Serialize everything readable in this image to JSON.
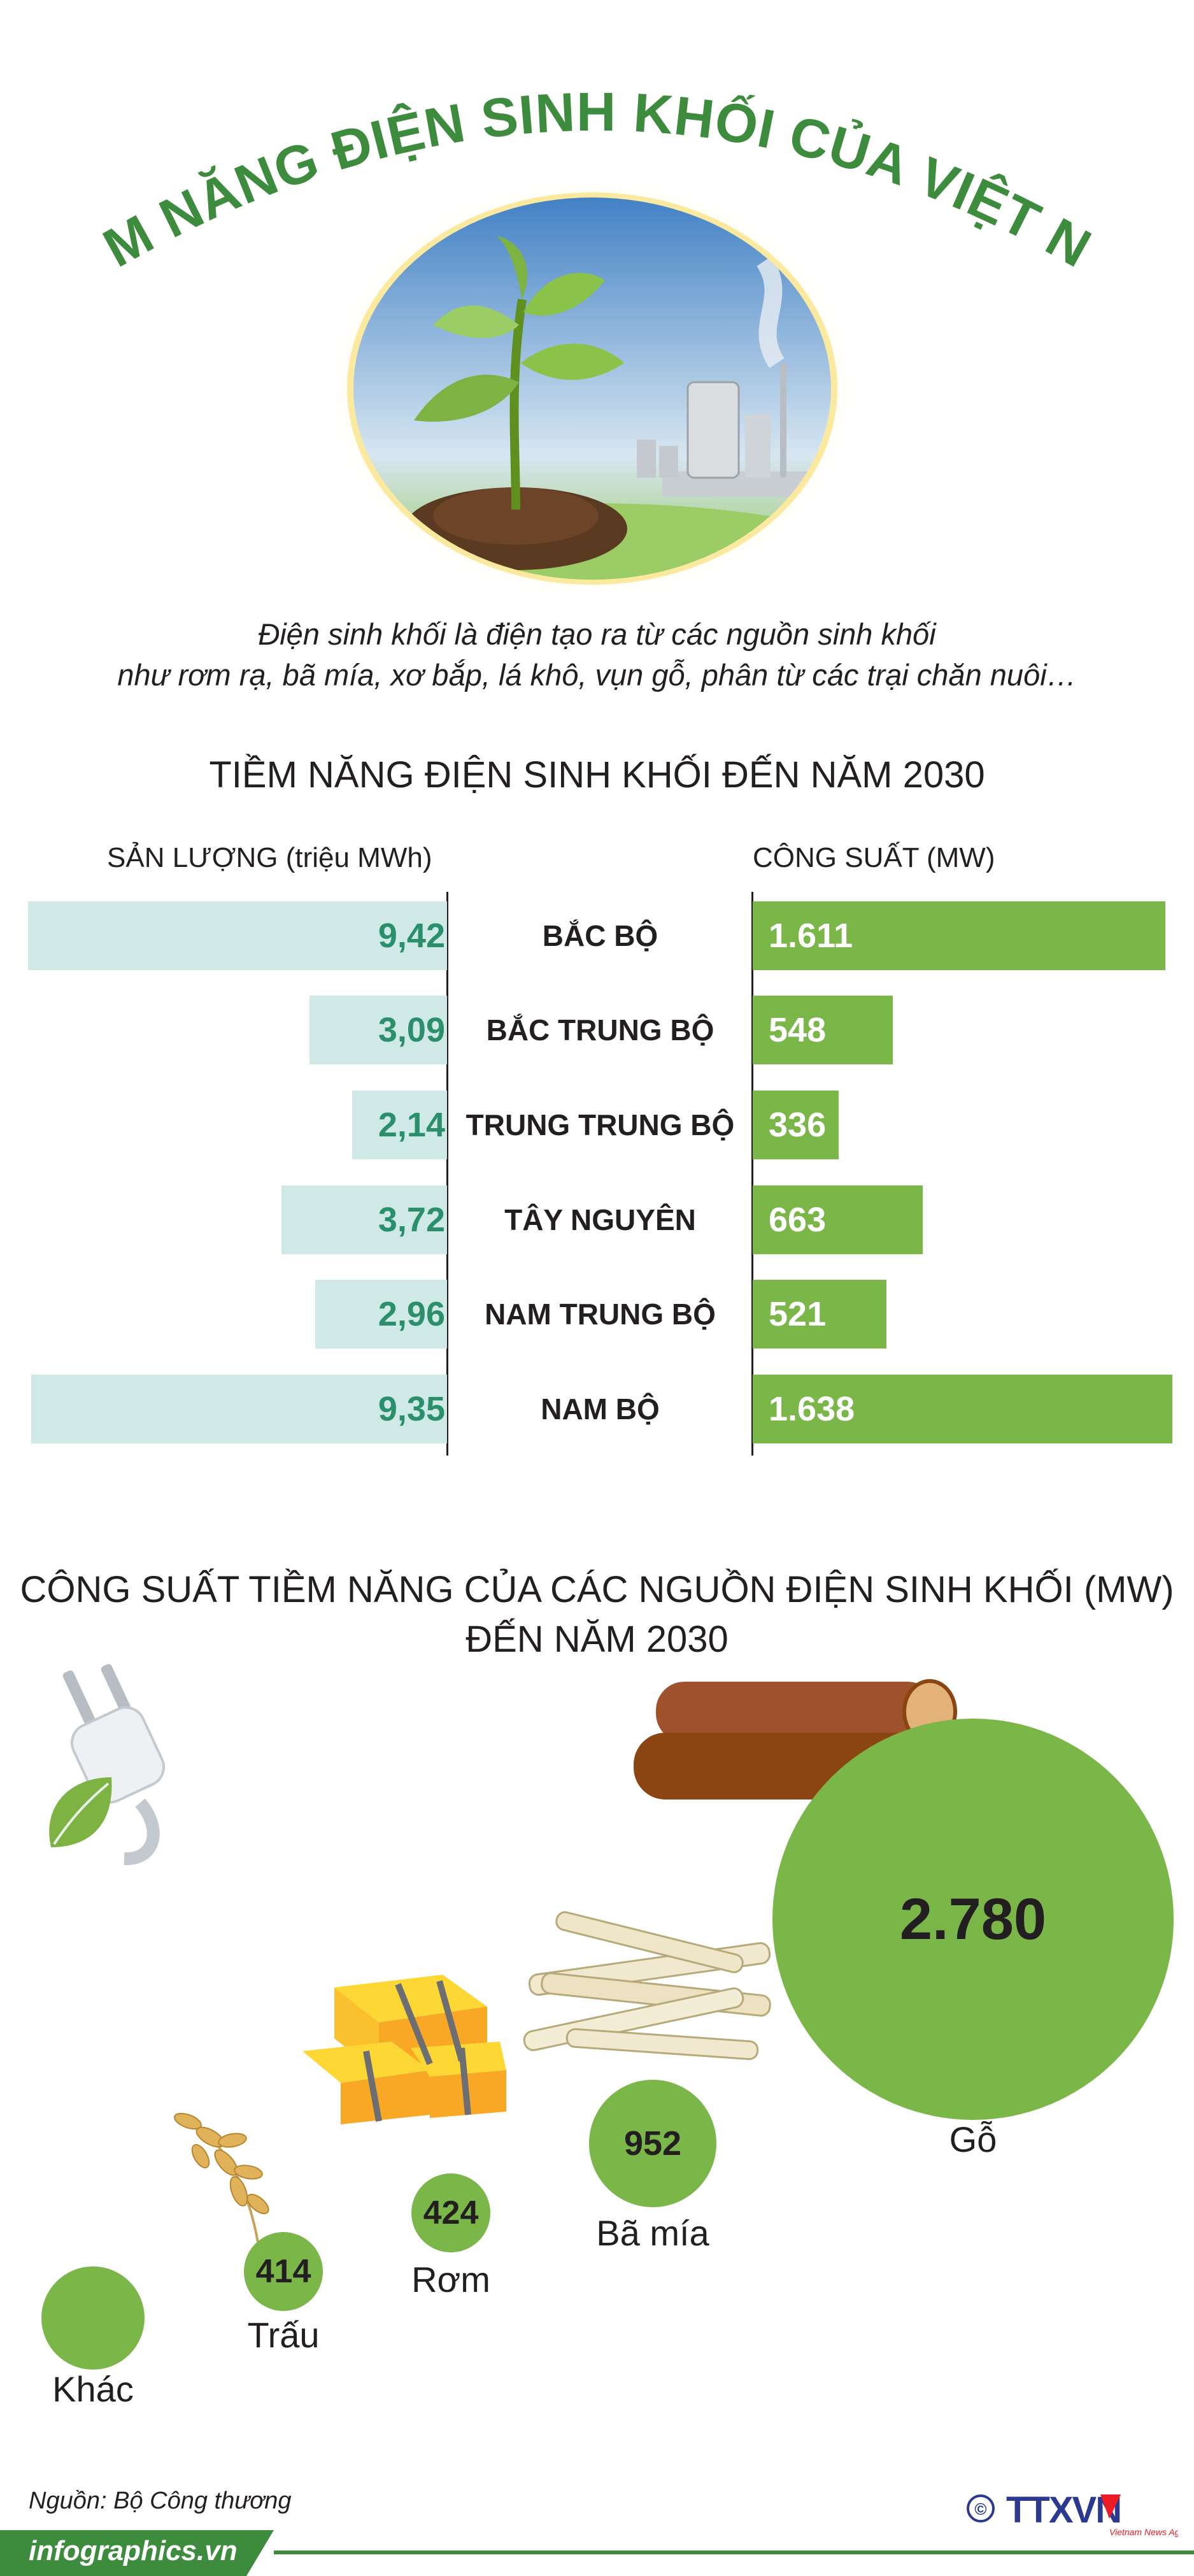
{
  "title": "TIỀM NĂNG ĐIỆN SINH KHỐI CỦA VIỆT NAM",
  "intro": {
    "line1": "Điện sinh khối là điện tạo ra từ các nguồn sinh khối",
    "line2": "như rơm rạ, bã mía, xơ bắp, lá khô, vụn gỗ, phân từ các trại chăn nuôi…"
  },
  "section1": {
    "title": "TIỀM NĂNG ĐIỆN SINH KHỐI ĐẾN NĂM 2030",
    "left_header": "SẢN LƯỢNG (triệu MWh)",
    "right_header": "CÔNG SUẤT (MW)"
  },
  "section2": {
    "title_line1": "CÔNG SUẤT TIỀM NĂNG CỦA CÁC NGUỒN ĐIỆN SINH KHỐI (MW)",
    "title_line2": "ĐẾN NĂM 2030"
  },
  "chart_data": [
    {
      "type": "bar",
      "categories": [
        "BẮC BỘ",
        "BẮC TRUNG BỘ",
        "TRUNG TRUNG BỘ",
        "TÂY NGUYÊN",
        "NAM TRUNG BỘ",
        "NAM BỘ"
      ],
      "series": [
        {
          "name": "SẢN LƯỢNG (triệu MWh)",
          "values": [
            9.42,
            3.09,
            2.14,
            3.72,
            2.96,
            9.35
          ],
          "labels": [
            "9,42",
            "3,09",
            "2,14",
            "3,72",
            "2,96",
            "9,35"
          ],
          "color": "#cfeae6"
        },
        {
          "name": "CÔNG SUẤT (MW)",
          "values": [
            1611,
            548,
            336,
            663,
            521,
            1638
          ],
          "labels": [
            "1.611",
            "548",
            "336",
            "663",
            "521",
            "1.638"
          ],
          "color": "#7ab648"
        }
      ]
    },
    {
      "type": "bubble",
      "categories": [
        "Gỗ",
        "Bã mía",
        "Rơm",
        "Trấu",
        "Khác"
      ],
      "values": [
        2780,
        952,
        424,
        414,
        null
      ],
      "labels": [
        "2.780",
        "952",
        "424",
        "414",
        ""
      ],
      "color": "#7ab648"
    }
  ],
  "source": "Nguồn: Bộ Công thương",
  "footer": "infographics.vn",
  "logo": {
    "text": "TTXVN",
    "sub": "Vietnam News Agency",
    "symbol": "©"
  },
  "colors": {
    "title_green": "#3d8b3d",
    "bar_green": "#7ab648",
    "bar_mint": "#cfeae6",
    "value_teal": "#2c8f6c"
  }
}
